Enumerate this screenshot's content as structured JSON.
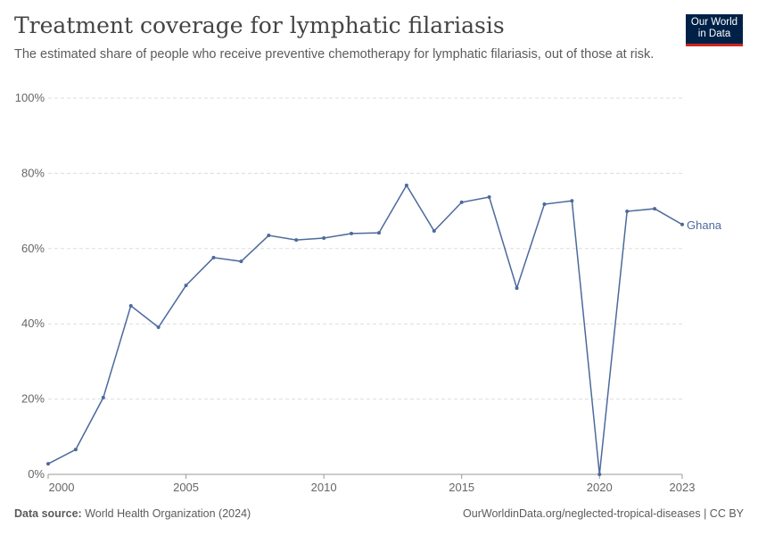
{
  "header": {
    "title": "Treatment coverage for lymphatic filariasis",
    "subtitle": "The estimated share of people who receive preventive chemotherapy for lymphatic filariasis, out of those at risk.",
    "logo": "Our World in Data"
  },
  "footer": {
    "source_label": "Data source:",
    "source": "World Health Organization (2024)",
    "link": "OurWorldinData.org/neglected-tropical-diseases | CC BY"
  },
  "chart_data": {
    "type": "line",
    "title": "Treatment coverage for lymphatic filariasis",
    "xlabel": "",
    "ylabel": "",
    "ylim": [
      0,
      100
    ],
    "yticks": [
      0,
      20,
      40,
      60,
      80,
      100
    ],
    "ytick_labels": [
      "0%",
      "20%",
      "40%",
      "60%",
      "80%",
      "100%"
    ],
    "xticks": [
      2000,
      2005,
      2010,
      2015,
      2020,
      2023
    ],
    "xtick_labels": [
      "2000",
      "2005",
      "2010",
      "2015",
      "2020",
      "2023"
    ],
    "grid": "horizontal dashed",
    "color": "#4c6a9c",
    "x": [
      2000,
      2001,
      2002,
      2003,
      2004,
      2005,
      2006,
      2007,
      2008,
      2009,
      2010,
      2011,
      2012,
      2013,
      2014,
      2015,
      2016,
      2017,
      2018,
      2019,
      2020,
      2021,
      2022,
      2023
    ],
    "series": [
      {
        "name": "Ghana",
        "values": [
          2.8,
          6.6,
          20.4,
          44.8,
          39.1,
          50.2,
          57.6,
          56.6,
          63.5,
          62.3,
          62.8,
          64.0,
          64.2,
          76.8,
          64.7,
          72.3,
          73.7,
          49.5,
          71.8,
          72.7,
          0,
          69.9,
          70.6,
          66.4
        ]
      }
    ]
  }
}
